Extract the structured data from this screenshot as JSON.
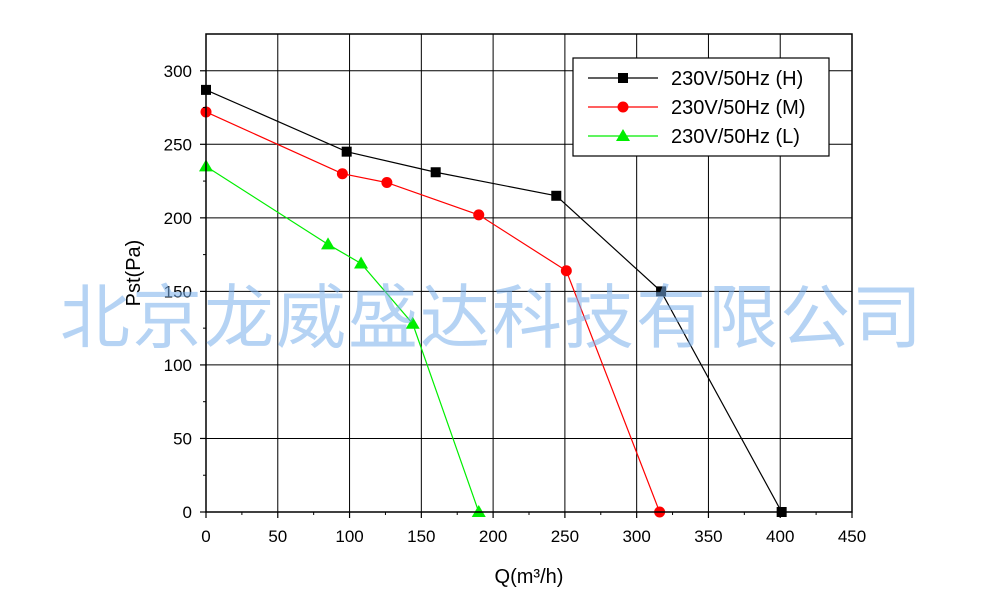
{
  "chart_data": {
    "type": "line",
    "xlabel": "Q(m³/h)",
    "ylabel": "Pst(Pa)",
    "xlim": [
      0,
      450
    ],
    "ylim": [
      0,
      325
    ],
    "xticks": [
      0,
      50,
      100,
      150,
      200,
      250,
      300,
      350,
      400,
      450
    ],
    "yticks": [
      0,
      50,
      100,
      150,
      200,
      250,
      300
    ],
    "grid": true,
    "legend_position": "top-right",
    "series": [
      {
        "name": "230V/50Hz (H)",
        "color": "#000000",
        "marker": "square",
        "points": [
          [
            0,
            287
          ],
          [
            98,
            245
          ],
          [
            160,
            231
          ],
          [
            244,
            215
          ],
          [
            317,
            150
          ],
          [
            401,
            0
          ]
        ]
      },
      {
        "name": "230V/50Hz (M)",
        "color": "#ff0000",
        "marker": "circle",
        "points": [
          [
            0,
            272
          ],
          [
            95,
            230
          ],
          [
            126,
            224
          ],
          [
            190,
            202
          ],
          [
            251,
            164
          ],
          [
            316,
            0
          ]
        ]
      },
      {
        "name": "230V/50Hz (L)",
        "color": "#00ee00",
        "marker": "triangle",
        "points": [
          [
            0,
            235
          ],
          [
            85,
            182
          ],
          [
            108,
            169
          ],
          [
            144,
            128
          ],
          [
            190,
            0
          ]
        ]
      }
    ]
  },
  "watermark_text": "北京龙威盛达科技有限公司"
}
